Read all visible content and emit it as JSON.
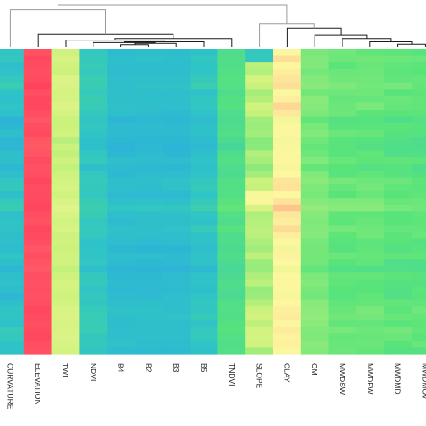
{
  "chart_data": {
    "type": "heatmap",
    "title": "",
    "xlabel": "",
    "ylabel": "",
    "columns": [
      "CURVATURE",
      "ELEVATION",
      "TWI",
      "NDVI",
      "B4",
      "B2",
      "B3",
      "B5",
      "TNDVI",
      "SLOPE",
      "CLAY",
      "OM",
      "MWDSW",
      "MWDFW",
      "MWDMD",
      "MWDMOV"
    ],
    "color_scale": [
      "#2aa0ea",
      "#2fc4c6",
      "#59e47a",
      "#cdf27c",
      "#fdf7a0",
      "#ff3a5a"
    ],
    "value_range": [
      0,
      1
    ],
    "n_rows": 45,
    "column_profiles": [
      {
        "column": "CURVATURE",
        "mean": 0.18,
        "spread": 0.08
      },
      {
        "column": "ELEVATION",
        "mean": 0.98,
        "spread": 0.01
      },
      {
        "column": "TWI",
        "mean": 0.62,
        "spread": 0.05
      },
      {
        "column": "NDVI",
        "mean": 0.22,
        "spread": 0.05
      },
      {
        "column": "B4",
        "mean": 0.16,
        "spread": 0.04
      },
      {
        "column": "B2",
        "mean": 0.16,
        "spread": 0.04
      },
      {
        "column": "B3",
        "mean": 0.16,
        "spread": 0.04
      },
      {
        "column": "B5",
        "mean": 0.2,
        "spread": 0.05
      },
      {
        "column": "TNDVI",
        "mean": 0.36,
        "spread": 0.04
      },
      {
        "column": "SLOPE",
        "mean": 0.56,
        "spread": 0.08
      },
      {
        "column": "CLAY",
        "mean": 0.8,
        "spread": 0.04
      },
      {
        "column": "OM",
        "mean": 0.46,
        "spread": 0.05
      },
      {
        "column": "MWDSW",
        "mean": 0.42,
        "spread": 0.05
      },
      {
        "column": "MWDFW",
        "mean": 0.42,
        "spread": 0.05
      },
      {
        "column": "MWDMD",
        "mean": 0.4,
        "spread": 0.05
      },
      {
        "column": "MWDMOV",
        "mean": 0.4,
        "spread": 0.05
      }
    ],
    "dendrogram": {
      "merges": [
        {
          "left": "B4",
          "right": "B2",
          "height": 0.05
        },
        {
          "left": "B4+B2",
          "right": "B3",
          "height": 0.08
        },
        {
          "left": "NDVI",
          "right": "B4+B2+B3",
          "height": 0.1
        },
        {
          "left": "NDVI+B4+B2+B3",
          "right": "B5",
          "height": 0.12
        },
        {
          "left": "TWI",
          "right": "NDVI+B4+B2+B3+B5",
          "height": 0.16
        },
        {
          "left": "TNDVI",
          "right": "TWI+NDVI+B4+B2+B3+B5",
          "height": 0.2
        },
        {
          "left": "ELEVATION",
          "right": "TNDVI+TWI+NDVI+B4+B2+B3+B5",
          "height": 0.3
        },
        {
          "left": "CURVATURE",
          "right": "ELEVATION+TNDVI+TWI+NDVI+B4+B2+B3+B5",
          "height": 0.9
        },
        {
          "left": "MWDMD",
          "right": "MWDMOV",
          "height": 0.06
        },
        {
          "left": "MWDFW",
          "right": "MWDMD+MWDMOV",
          "height": 0.12
        },
        {
          "left": "MWDSW",
          "right": "MWDFW+MWDMD+MWDMOV",
          "height": 0.2
        },
        {
          "left": "OM",
          "right": "MWDSW+MWDFW+MWDMD+MWDMOV",
          "height": 0.28
        },
        {
          "left": "CLAY",
          "right": "OM+MWDSW+MWDFW+MWDMD+MWDMOV",
          "height": 0.45
        },
        {
          "left": "SLOPE",
          "right": "CLAY+OM+MWDSW+MWDFW+MWDMD+MWDMOV",
          "height": 0.55
        },
        {
          "left": "left-cluster",
          "right": "right-cluster",
          "height": 1.0
        }
      ]
    },
    "grid": false,
    "legend": "none"
  },
  "colors": {
    "background": "#ffffff",
    "dendrogram_dark": "#1a1a1a",
    "dendrogram_light": "#9a9a9a",
    "label_text": "#222222"
  }
}
